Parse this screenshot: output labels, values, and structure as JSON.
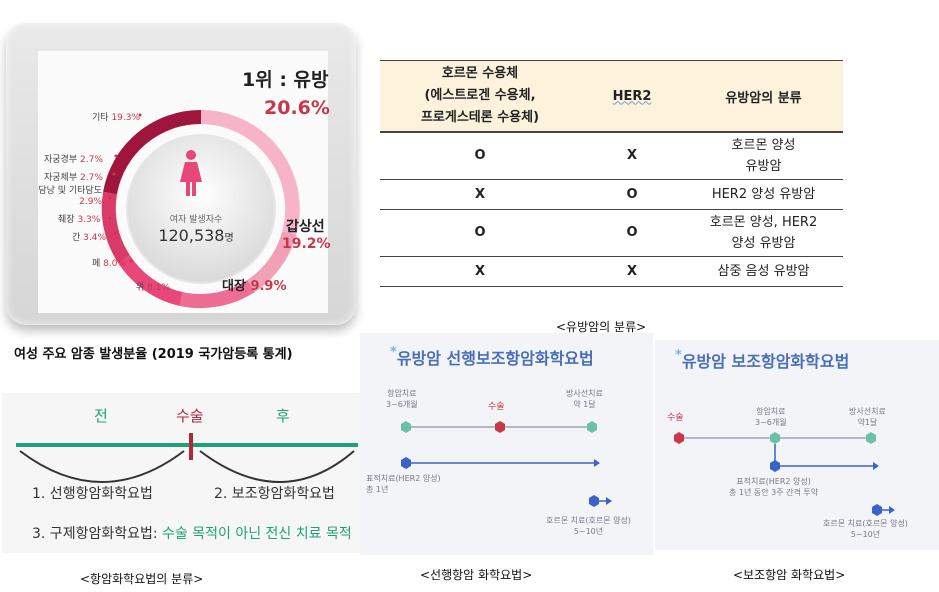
{
  "donut": {
    "rank_title": "1위 : 유방",
    "rank_value": "20.6%",
    "center_caption": "여자 발생자수",
    "center_number": "120,538",
    "center_unit": "명",
    "colors": {
      "primary": "#e8477a",
      "secondary": "#f7b3c8",
      "dark": "#a0153e"
    },
    "segments": [
      {
        "name": "기타",
        "value": "19.3%"
      },
      {
        "name": "자궁경부",
        "value": "2.7%"
      },
      {
        "name": "자궁체부",
        "value": "2.7%"
      },
      {
        "name": "담낭 및 기타담도",
        "value": "2.9%"
      },
      {
        "name": "췌장",
        "value": "3.3%"
      },
      {
        "name": "간",
        "value": "3.4%"
      },
      {
        "name": "폐",
        "value": "8.0%"
      },
      {
        "name": "위",
        "value": "8.1%"
      },
      {
        "name": "대장",
        "value": "9.9%"
      },
      {
        "name": "갑상선",
        "value": "19.2%"
      }
    ],
    "caption": "여성 주요 암종 발생분율 (2019 국가암등록 통계)"
  },
  "table": {
    "headers": [
      "호르몬 수용체\n(에스트로겐 수용체,\n프로게스테론 수용체)",
      "HER2",
      "유방암의 분류"
    ],
    "rows": [
      [
        "O",
        "X",
        "호르몬 양성\n유방암"
      ],
      [
        "X",
        "O",
        "HER2 양성 유방암"
      ],
      [
        "O",
        "O",
        "호르몬 양성, HER2\n양성 유방암"
      ],
      [
        "X",
        "X",
        "삼중 음성 유방암"
      ]
    ],
    "caption": "<유방암의 분류>"
  },
  "timeline": {
    "before": "전",
    "surgery": "수술",
    "after": "후",
    "item1": "1. 선행항암화학요법",
    "item2": "2. 보조항암화학요법",
    "item3_prefix": "3. 구제항암화학요법:",
    "item3_note": "수술 목적이 아닌 전신 치료 목적",
    "colors": {
      "line": "#1aa37a",
      "marker": "#b0283c",
      "note": "#1aa37a"
    },
    "caption": "<항암화학요법의 분류>"
  },
  "neoadjuvant": {
    "title": "유방암 선행보조항암화학요법",
    "hormone_period": "항암치료\n3~6개월",
    "surgery": "수술",
    "radiation": "방사선치료\n약 1달",
    "targeted": "표적치료(HER2 양성)\n총 1년",
    "hormone_therapy": "호르몬 치료(호르몬 양성)\n5~10년",
    "caption": "<선행항암 화학요법>"
  },
  "adjuvant": {
    "title": "유방암 보조항암화학요법",
    "surgery": "수술",
    "chemo": "항암치료\n3~6개월",
    "radiation": "방사선치료\n약1달",
    "targeted": "표적치료(HER2 양성)\n총 1년 동안 3주 간격 투약",
    "hormone_therapy": "호르몬 치료(호르몬 양성)\n5~10년",
    "caption": "<보조항암 화학요법>"
  }
}
